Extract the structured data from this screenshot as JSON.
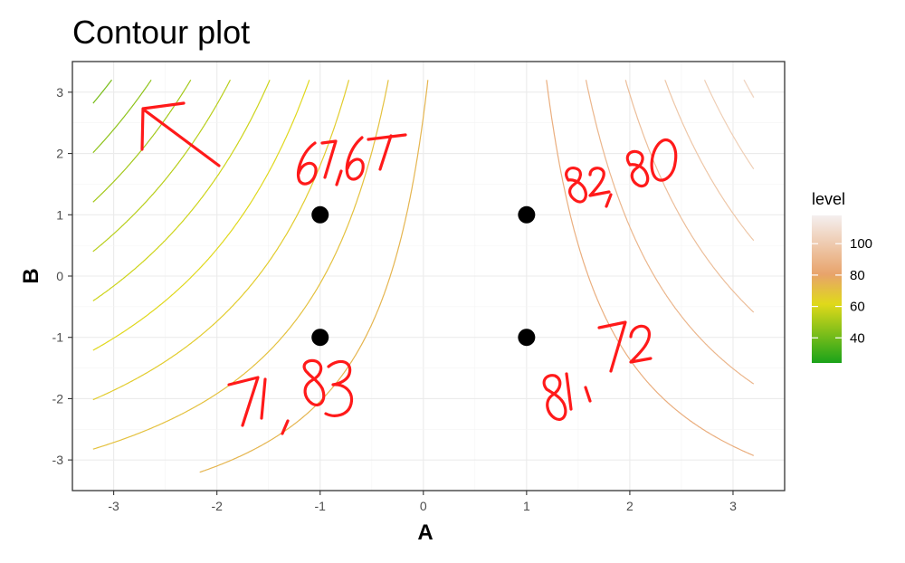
{
  "chart_data": {
    "type": "contour",
    "title": "Contour plot",
    "xlabel": "A",
    "ylabel": "B",
    "xlim": [
      -3.4,
      3.5
    ],
    "ylim": [
      -3.5,
      3.5
    ],
    "x_ticks": [
      -3,
      -2,
      -1,
      0,
      1,
      2,
      3
    ],
    "y_ticks": [
      -3,
      -2,
      -1,
      0,
      1,
      2,
      3
    ],
    "grid": true,
    "legend": {
      "title": "level",
      "placement": "right",
      "ticks": [
        40,
        60,
        80,
        100
      ],
      "range": [
        24,
        118
      ],
      "colors": [
        "#1aa31a",
        "#e0d91a",
        "#e8a36a",
        "#f4efef"
      ]
    },
    "contour_levels": [
      30,
      34,
      38,
      42,
      46,
      50,
      54,
      58,
      62,
      66,
      70,
      74,
      78,
      82,
      86,
      90,
      94,
      98,
      102,
      106,
      110,
      114
    ],
    "design_points": [
      {
        "x": -1,
        "y": 1
      },
      {
        "x": 1,
        "y": 1
      },
      {
        "x": -1,
        "y": -1
      },
      {
        "x": 1,
        "y": -1
      }
    ],
    "annotations": [
      {
        "text": "67,67",
        "near": {
          "x": -1,
          "y": 1
        }
      },
      {
        "text": "82,80",
        "near": {
          "x": 1,
          "y": 1
        }
      },
      {
        "text": "71,83",
        "near": {
          "x": -1,
          "y": -1
        }
      },
      {
        "text": "81,72",
        "near": {
          "x": 1,
          "y": -1
        }
      }
    ]
  },
  "colors": {
    "low": "#1aa31a",
    "mid": "#e0d91a",
    "high": "#e8a36a",
    "top": "#f4efef",
    "annotation": "#ff1a1a",
    "point": "#000000"
  }
}
